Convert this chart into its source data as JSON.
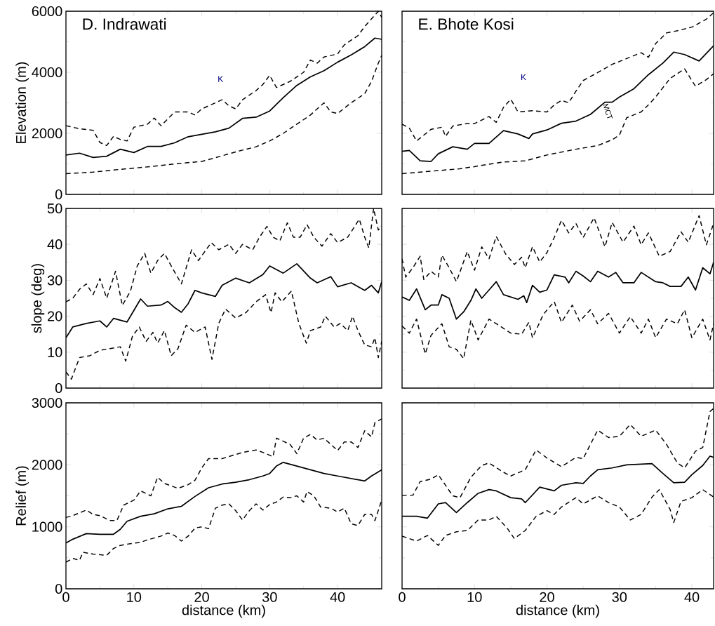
{
  "chart_data": [
    {
      "type": "line",
      "title": "D. Indrawati",
      "ylabel": "Elevation (m)",
      "xlim": [
        0,
        46.5
      ],
      "ylim": [
        0,
        6000
      ],
      "xticks": [
        0,
        10,
        20,
        30,
        40
      ],
      "yticks": [
        0,
        2000,
        4000,
        6000
      ],
      "tick_labels": "y",
      "annotations": [
        "K"
      ],
      "series": [
        {
          "color": "#000000",
          "line_style": "solid",
          "x": [
            0,
            2,
            4,
            6,
            8,
            10,
            12,
            14,
            16,
            18,
            20,
            22,
            24,
            26,
            28,
            30,
            32,
            34,
            36,
            38,
            40,
            42,
            44,
            45.5,
            46.5
          ],
          "values": [
            1290,
            1350,
            1210,
            1250,
            1480,
            1370,
            1570,
            1570,
            1690,
            1890,
            1970,
            2050,
            2170,
            2490,
            2530,
            2730,
            3170,
            3570,
            3850,
            4050,
            4330,
            4570,
            4840,
            5120,
            5080
          ]
        },
        {
          "color": "#000000",
          "line_style": "dashed",
          "x": [
            0,
            2,
            4,
            5,
            6,
            7,
            8,
            9,
            10,
            12,
            13,
            14,
            16,
            18,
            19,
            20,
            22,
            23,
            24,
            25,
            26,
            28,
            29,
            30,
            31,
            33,
            35,
            36,
            37,
            38,
            40,
            41,
            43,
            44,
            46,
            46.5
          ],
          "values": [
            2250,
            2150,
            2100,
            1700,
            1600,
            1900,
            1800,
            1750,
            2200,
            2300,
            2500,
            2250,
            2700,
            2700,
            2600,
            2800,
            3000,
            3100,
            2900,
            2800,
            3100,
            3400,
            3600,
            3900,
            3500,
            3700,
            4000,
            4400,
            4300,
            4500,
            4600,
            4900,
            5200,
            5500,
            6000,
            5800
          ]
        },
        {
          "color": "#000000",
          "line_style": "dashed",
          "x": [
            0,
            4,
            8,
            12,
            16,
            20,
            22,
            24,
            26,
            28,
            30,
            32,
            34,
            36,
            38,
            39,
            40,
            42,
            44,
            45,
            46,
            46.5
          ],
          "values": [
            680,
            730,
            820,
            900,
            1000,
            1080,
            1200,
            1330,
            1450,
            1560,
            1750,
            2000,
            2300,
            2600,
            3000,
            2700,
            2650,
            3000,
            3300,
            3700,
            4300,
            4550
          ]
        }
      ]
    },
    {
      "type": "line",
      "title": "E. Bhote Kosi",
      "xlim": [
        0,
        43
      ],
      "ylim": [
        0,
        6000
      ],
      "xticks": [
        0,
        10,
        20,
        30,
        40
      ],
      "yticks": [
        0,
        2000,
        4000,
        6000
      ],
      "tick_labels": false,
      "annotations": [
        "K",
        {
          "text": "MCT",
          "x": 28,
          "y": 3000
        }
      ],
      "series": [
        {
          "color": "#000000",
          "line_style": "solid",
          "x": [
            0,
            1,
            2.5,
            4,
            5,
            7,
            9,
            10,
            12,
            14,
            16,
            17.5,
            18,
            20,
            22,
            24,
            26,
            28,
            29,
            30,
            32,
            34,
            36,
            37.5,
            39,
            41,
            43
          ],
          "values": [
            1410,
            1440,
            1100,
            1080,
            1330,
            1560,
            1480,
            1670,
            1670,
            2090,
            1980,
            1830,
            1980,
            2110,
            2330,
            2400,
            2620,
            3020,
            3020,
            3190,
            3460,
            3920,
            4300,
            4660,
            4580,
            4370,
            4870
          ]
        },
        {
          "color": "#000000",
          "line_style": "dashed",
          "x": [
            0,
            1,
            2,
            4,
            5.5,
            6,
            7,
            9,
            10,
            12,
            13,
            14,
            15,
            16,
            18,
            20,
            21,
            22,
            23,
            24,
            25,
            27,
            29,
            31,
            33,
            34,
            35,
            36.5,
            38,
            40,
            42,
            43
          ],
          "values": [
            2300,
            2170,
            1750,
            2130,
            2200,
            1900,
            2240,
            2320,
            2320,
            2550,
            2360,
            2850,
            3120,
            2700,
            2740,
            2700,
            2930,
            3080,
            3000,
            3380,
            3730,
            3990,
            4260,
            4450,
            4640,
            4490,
            4940,
            5290,
            5360,
            5480,
            5740,
            5950
          ]
        },
        {
          "color": "#000000",
          "line_style": "dashed",
          "x": [
            0,
            4,
            8,
            10,
            12,
            14,
            17,
            20,
            24,
            27,
            29,
            30,
            31,
            33,
            34,
            35,
            37,
            39,
            40.5,
            42,
            43
          ],
          "values": [
            680,
            760,
            840,
            910,
            990,
            1060,
            1100,
            1290,
            1480,
            1600,
            1790,
            1940,
            2510,
            2700,
            2930,
            3190,
            3800,
            4110,
            3540,
            3760,
            3950
          ]
        }
      ]
    },
    {
      "type": "line",
      "ylabel": "slope (deg)",
      "xlim": [
        0,
        46.5
      ],
      "ylim": [
        0,
        50
      ],
      "xticks": [
        0,
        10,
        20,
        30,
        40
      ],
      "yticks": [
        0,
        10,
        20,
        30,
        40,
        50
      ],
      "tick_labels": "y",
      "series": [
        {
          "color": "#000000",
          "line_style": "solid",
          "x": [
            0,
            1,
            3,
            5,
            6,
            7,
            9,
            11,
            12,
            14,
            15,
            16,
            17,
            18,
            19,
            20,
            22,
            23,
            25,
            27,
            29,
            30,
            32,
            34,
            36,
            37,
            39,
            40,
            42,
            44,
            45,
            46,
            46.5
          ],
          "values": [
            14,
            17,
            18,
            18.7,
            17,
            19.4,
            18.4,
            24.8,
            22.8,
            23.1,
            24.1,
            22.4,
            21.1,
            23.5,
            27.2,
            26.5,
            25.5,
            28.6,
            30.6,
            29.3,
            31.6,
            34,
            32,
            34.6,
            30.6,
            29.3,
            31,
            28.2,
            29.3,
            27.2,
            28.6,
            26.5,
            29.6
          ]
        },
        {
          "color": "#000000",
          "line_style": "dashed",
          "x": [
            0,
            1,
            2,
            3,
            4,
            5,
            6,
            7.3,
            8.3,
            9.5,
            10.5,
            11.6,
            12.5,
            13.5,
            14.5,
            15.5,
            17,
            18.5,
            19.5,
            21.4,
            22.5,
            24,
            25,
            26,
            27.5,
            28.5,
            29.6,
            30.5,
            31.5,
            32.6,
            33.5,
            34.5,
            35.5,
            36.5,
            37.7,
            39,
            40,
            41.5,
            43.2,
            44,
            44.6,
            45.3,
            46,
            46.5
          ],
          "values": [
            24,
            25,
            27.5,
            29,
            26,
            30.5,
            25,
            32.5,
            23,
            27,
            34,
            37.5,
            32,
            35.5,
            37.5,
            34,
            29,
            38.5,
            35.5,
            40.5,
            38.5,
            40,
            37.5,
            40,
            38.5,
            42,
            45,
            42,
            41,
            46,
            42,
            42,
            45.5,
            42,
            39.5,
            43,
            40.5,
            42,
            47,
            42,
            39,
            50,
            44,
            45
          ]
        },
        {
          "color": "#000000",
          "line_style": "dashed",
          "x": [
            0,
            0.8,
            2,
            3.5,
            5,
            6.5,
            8,
            8.8,
            9.8,
            10.8,
            11.8,
            12.8,
            13.5,
            14.5,
            15.5,
            16.5,
            17.7,
            19,
            20.5,
            21.5,
            22.5,
            23.5,
            25,
            26.5,
            28,
            29.4,
            30.2,
            30.8,
            31.8,
            33.2,
            34.3,
            35.4,
            36,
            37.5,
            38.2,
            39.5,
            40.4,
            41.5,
            42.2,
            43,
            44,
            45,
            45.5,
            46,
            46.5
          ],
          "values": [
            4.5,
            2.5,
            8.5,
            9,
            10.5,
            11,
            11.5,
            7.5,
            14.5,
            17,
            13,
            15.5,
            12.5,
            16,
            9,
            11,
            17.5,
            15.5,
            17,
            8,
            18,
            22,
            19.5,
            21,
            24,
            26,
            21,
            26.5,
            24,
            27,
            18,
            12.5,
            16,
            17,
            20,
            17,
            18,
            16,
            20,
            16,
            12,
            11.5,
            14,
            8.5,
            13
          ]
        }
      ]
    },
    {
      "type": "line",
      "xlim": [
        0,
        43
      ],
      "ylim": [
        0,
        50
      ],
      "xticks": [
        0,
        10,
        20,
        30,
        40
      ],
      "yticks": [
        0,
        10,
        20,
        30,
        40,
        50
      ],
      "tick_labels": false,
      "series": [
        {
          "color": "#000000",
          "line_style": "solid",
          "x": [
            0,
            1,
            2,
            3.2,
            4,
            5,
            5.5,
            6.5,
            7.5,
            8.5,
            9.5,
            10.2,
            11,
            12,
            13,
            14,
            16,
            16.8,
            17.2,
            18,
            19,
            20,
            21,
            22.5,
            23,
            24,
            25,
            26,
            27,
            28.5,
            29.5,
            30.5,
            32,
            33,
            35,
            36,
            37,
            38.5,
            39.5,
            40.5,
            41.5,
            42.5,
            43
          ],
          "values": [
            25.4,
            24.4,
            27.6,
            21.8,
            23.1,
            23.1,
            26,
            25,
            19.2,
            21.2,
            24.4,
            27.6,
            25,
            27.3,
            29.6,
            26,
            24.7,
            25.7,
            23.8,
            28.6,
            26.7,
            27.3,
            31.5,
            30.9,
            29.3,
            32.5,
            31.2,
            29.6,
            32.5,
            30.9,
            32.2,
            29.3,
            29.3,
            32.2,
            29.6,
            29.3,
            28.3,
            28.3,
            30.9,
            27.3,
            33.5,
            31.8,
            35
          ]
        },
        {
          "color": "#000000",
          "line_style": "dashed",
          "x": [
            0,
            0.5,
            1.5,
            2.5,
            3,
            4,
            5,
            5.5,
            6.5,
            7.5,
            9,
            10,
            11,
            12,
            13,
            14.3,
            15.5,
            16.5,
            17,
            18,
            19,
            20,
            21,
            22,
            23,
            24,
            25,
            26.5,
            28,
            29,
            30.5,
            32,
            33,
            34,
            35.5,
            37,
            38.5,
            39.5,
            41,
            42,
            43
          ],
          "values": [
            36,
            30.9,
            33.5,
            36.7,
            30.2,
            32.5,
            30.9,
            37,
            33.5,
            29.6,
            38,
            32.8,
            39.3,
            36,
            42.2,
            37.3,
            34.4,
            36.4,
            33.5,
            39.3,
            35.1,
            37.7,
            41.9,
            46.7,
            43.2,
            45.8,
            41.9,
            47.4,
            39.3,
            46.1,
            40.6,
            45.1,
            39.9,
            43.2,
            36.7,
            38,
            43.5,
            40.6,
            48,
            39.9,
            45.8
          ]
        },
        {
          "color": "#000000",
          "line_style": "dashed",
          "x": [
            0,
            1,
            2,
            3.2,
            4,
            5.5,
            6.5,
            7.5,
            8.5,
            9.5,
            10.5,
            12,
            13.5,
            15,
            16.5,
            17.5,
            18,
            19.5,
            21,
            22,
            23.5,
            24.5,
            26,
            27,
            28.5,
            30,
            31.5,
            33,
            34,
            35,
            36.5,
            38,
            39,
            40,
            41.5,
            42.5,
            43
          ],
          "values": [
            17.3,
            15.3,
            19.2,
            9.5,
            14.7,
            17.9,
            11.5,
            10.8,
            8.2,
            18.9,
            13.4,
            19.2,
            17.3,
            15.3,
            15,
            18.3,
            14,
            20.5,
            24.1,
            18.3,
            23.1,
            18.6,
            21.8,
            17.9,
            20.8,
            15.3,
            19.9,
            15.3,
            19.2,
            14,
            19.2,
            17.9,
            21.8,
            14,
            19.2,
            13.4,
            17.9
          ]
        }
      ]
    },
    {
      "type": "line",
      "xlabel": "distance (km)",
      "ylabel": "Relief (m)",
      "xlim": [
        0,
        46.5
      ],
      "ylim": [
        0,
        3000
      ],
      "xticks": [
        0,
        10,
        20,
        30,
        40
      ],
      "yticks": [
        0,
        1000,
        2000,
        3000
      ],
      "series": [
        {
          "color": "#000000",
          "line_style": "solid",
          "x": [
            0,
            1,
            3,
            5,
            7,
            8,
            9,
            11,
            13,
            15,
            17,
            19,
            21,
            23,
            25,
            27,
            29,
            30,
            31,
            32,
            34,
            36,
            38,
            40,
            42,
            44,
            45,
            46.5
          ],
          "values": [
            740,
            800,
            890,
            880,
            880,
            960,
            1090,
            1170,
            1210,
            1290,
            1330,
            1490,
            1630,
            1690,
            1720,
            1760,
            1820,
            1860,
            1980,
            2040,
            1980,
            1920,
            1860,
            1820,
            1780,
            1740,
            1820,
            1920
          ]
        },
        {
          "color": "#000000",
          "line_style": "dashed",
          "x": [
            0,
            1,
            3,
            4,
            5,
            6.5,
            7.5,
            8.5,
            10,
            11,
            12.5,
            13.5,
            14.5,
            16.5,
            18,
            19,
            20,
            21,
            23,
            24.5,
            26,
            28,
            29.5,
            30.5,
            31,
            33,
            34,
            35,
            36,
            37,
            38,
            39,
            40,
            41,
            42,
            43,
            44,
            45,
            45.5,
            46.5
          ],
          "values": [
            1150,
            1180,
            1270,
            1200,
            1180,
            1100,
            1100,
            1350,
            1430,
            1580,
            1500,
            1800,
            1700,
            1620,
            1680,
            1750,
            1950,
            2100,
            2100,
            2150,
            2200,
            2240,
            2180,
            2130,
            2430,
            2330,
            2180,
            2430,
            2490,
            2400,
            2430,
            2330,
            2230,
            2370,
            2370,
            2280,
            2550,
            2450,
            2680,
            2740
          ]
        },
        {
          "color": "#000000",
          "line_style": "dashed",
          "x": [
            0,
            1,
            2,
            2.5,
            4,
            6,
            7,
            8,
            9,
            11,
            12,
            14,
            15,
            16,
            17,
            18,
            19,
            20,
            21,
            22,
            23,
            24,
            25,
            26,
            27,
            28,
            29,
            30,
            31,
            32,
            33,
            34,
            35,
            35.5,
            36.5,
            37.5,
            39,
            40,
            41,
            42,
            43,
            44,
            45,
            45.5,
            46.5
          ],
          "values": [
            430,
            490,
            460,
            590,
            560,
            540,
            650,
            700,
            720,
            750,
            790,
            850,
            900,
            860,
            770,
            850,
            980,
            1000,
            970,
            1300,
            1350,
            1370,
            1260,
            1110,
            1260,
            1370,
            1270,
            1360,
            1400,
            1480,
            1470,
            1500,
            1400,
            1570,
            1500,
            1320,
            1300,
            1240,
            1300,
            1050,
            1020,
            1200,
            1200,
            1100,
            1430
          ]
        }
      ]
    },
    {
      "type": "line",
      "xlabel": "distance (km)",
      "xlim": [
        0,
        43
      ],
      "ylim": [
        0,
        3000
      ],
      "xticks": [
        0,
        10,
        20,
        30,
        40
      ],
      "yticks": [
        0,
        1000,
        2000,
        3000
      ],
      "tick_labels": "x",
      "series": [
        {
          "color": "#000000",
          "line_style": "solid",
          "x": [
            0,
            2,
            3.5,
            5,
            6,
            7.5,
            9,
            10.5,
            12,
            13,
            15,
            16.5,
            17,
            19,
            21,
            22,
            24,
            25,
            26,
            27,
            29,
            31,
            33,
            34.5,
            36,
            37.5,
            39,
            40,
            41.5,
            42.5,
            43
          ],
          "values": [
            1170,
            1170,
            1140,
            1370,
            1390,
            1230,
            1390,
            1540,
            1600,
            1580,
            1470,
            1450,
            1390,
            1640,
            1580,
            1670,
            1710,
            1700,
            1820,
            1920,
            1950,
            2000,
            2010,
            2020,
            1860,
            1710,
            1720,
            1840,
            1990,
            2140,
            2120
          ]
        },
        {
          "color": "#000000",
          "line_style": "dashed",
          "x": [
            0,
            1.5,
            2.5,
            4,
            5,
            7,
            8,
            9.5,
            11,
            12,
            14,
            15,
            17,
            18.5,
            20,
            22,
            24,
            25,
            27,
            28.5,
            30,
            31.5,
            33,
            35,
            36.5,
            38,
            39,
            40.5,
            41.5,
            42.5,
            43
          ],
          "values": [
            1510,
            1510,
            1730,
            1770,
            1840,
            1500,
            1470,
            1800,
            1990,
            2030,
            1880,
            1820,
            1920,
            2240,
            2110,
            1970,
            2120,
            2100,
            2560,
            2440,
            2460,
            2650,
            2460,
            2560,
            2330,
            2030,
            1950,
            2220,
            2280,
            2860,
            2910
          ]
        },
        {
          "color": "#000000",
          "line_style": "dashed",
          "x": [
            0,
            2,
            3.5,
            5,
            6,
            7.5,
            9,
            10.5,
            12,
            13,
            14.5,
            15.5,
            17,
            18.5,
            20,
            21,
            22,
            24,
            25,
            27,
            28.5,
            30,
            31.5,
            33,
            34.5,
            35.5,
            37,
            37.5,
            38.5,
            40,
            41.5,
            43
          ],
          "values": [
            850,
            770,
            860,
            700,
            860,
            920,
            940,
            1110,
            1110,
            1170,
            980,
            810,
            940,
            1170,
            1260,
            1200,
            1320,
            1470,
            1370,
            1500,
            1390,
            1320,
            1110,
            1200,
            1480,
            1600,
            1280,
            1070,
            1410,
            1470,
            1600,
            1480
          ]
        }
      ]
    }
  ]
}
